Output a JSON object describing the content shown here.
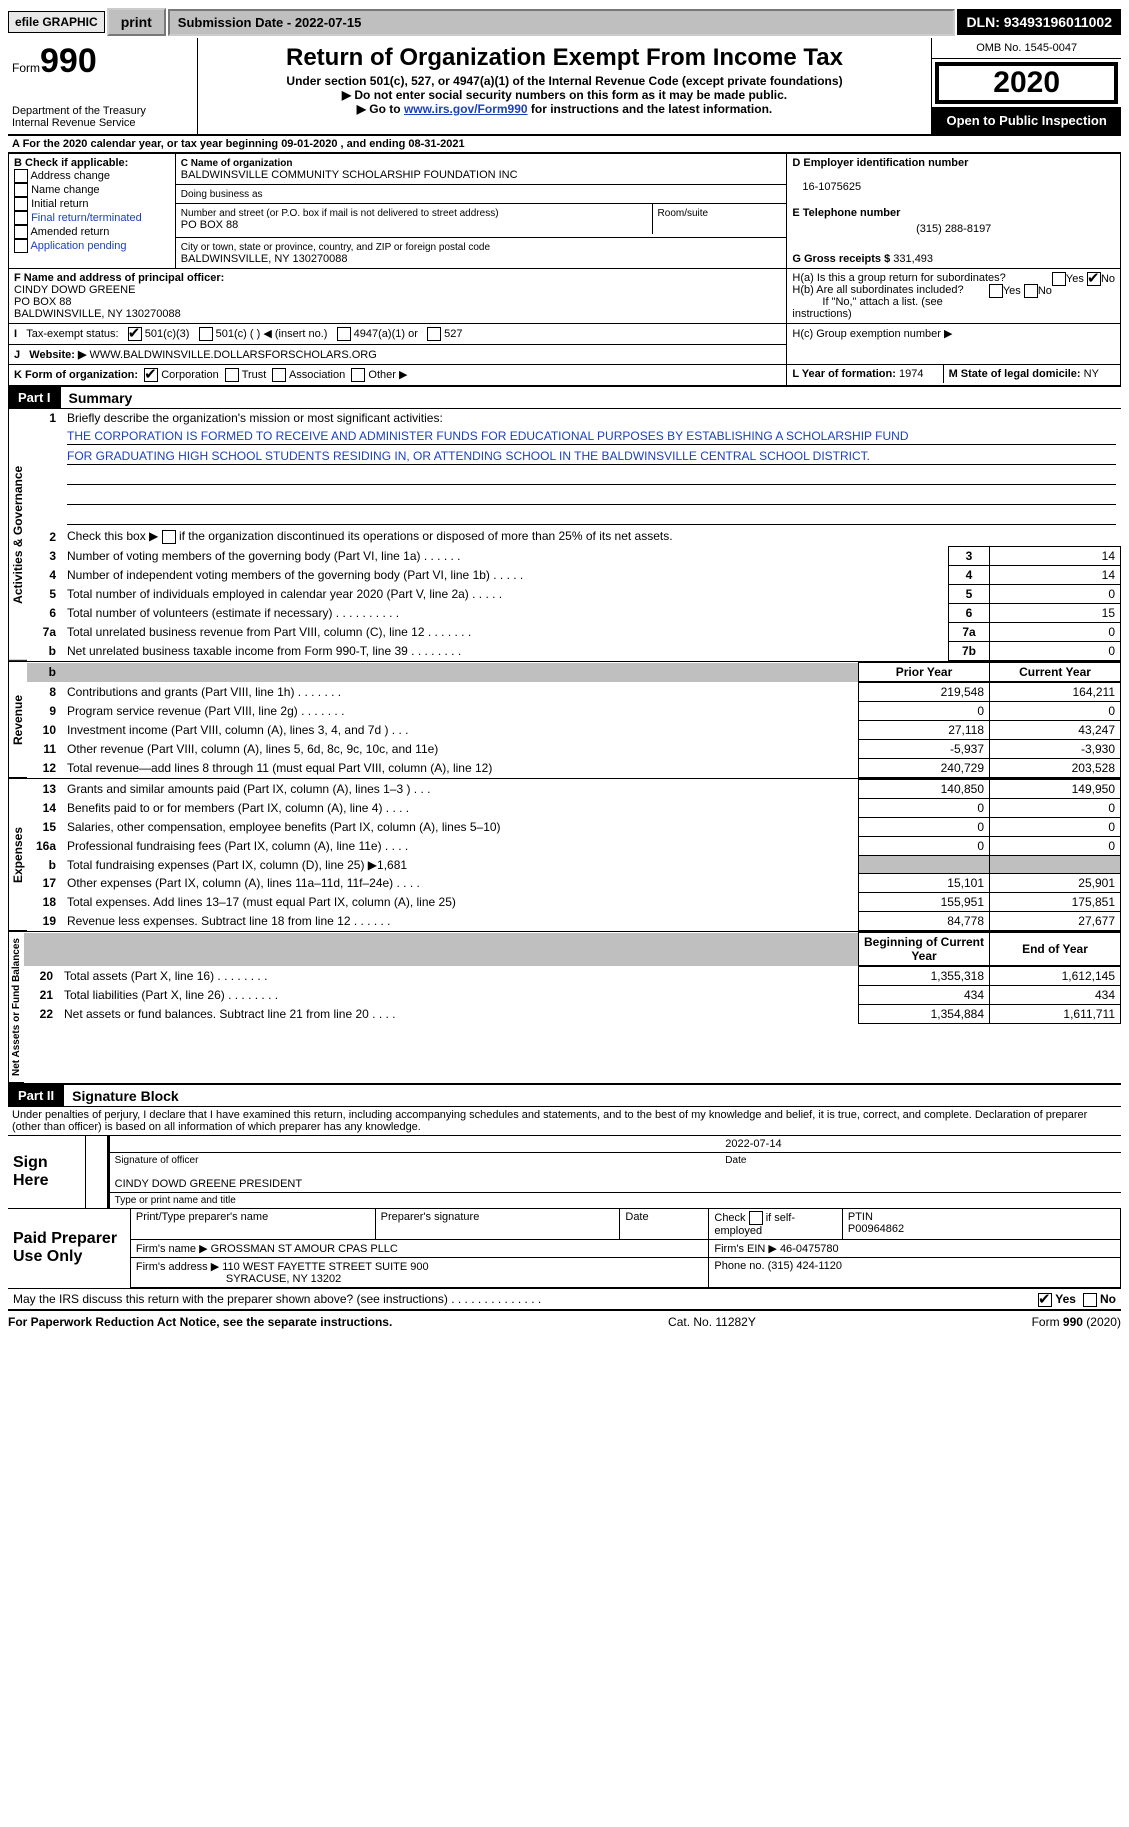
{
  "topbar": {
    "efile_label": "efile GRAPHIC",
    "print_label": "print",
    "submission": "Submission Date - 2022-07-15",
    "dln": "DLN: 93493196011002"
  },
  "header": {
    "form_word": "Form",
    "form_no": "990",
    "dept": "Department of the Treasury\nInternal Revenue Service",
    "title": "Return of Organization Exempt From Income Tax",
    "subtitle": "Under section 501(c), 527, or 4947(a)(1) of the Internal Revenue Code (except private foundations)",
    "note1": "▶ Do not enter social security numbers on this form as it may be made public.",
    "note2_pre": "▶ Go to ",
    "note2_link": "www.irs.gov/Form990",
    "note2_post": " for instructions and the latest information.",
    "omb": "OMB No. 1545-0047",
    "year": "2020",
    "open_pub": "Open to Public Inspection"
  },
  "lineA": "A For the 2020 calendar year, or tax year beginning 09-01-2020    , and ending 08-31-2021",
  "boxB": {
    "label": "B Check if applicable:",
    "opts": [
      "Address change",
      "Name change",
      "Initial return",
      "Final return/terminated",
      "Amended return",
      "Application pending"
    ]
  },
  "boxC": {
    "label": "C Name of organization",
    "name": "BALDWINSVILLE COMMUNITY SCHOLARSHIP FOUNDATION INC",
    "dba_label": "Doing business as",
    "addr_label": "Number and street (or P.O. box if mail is not delivered to street address)",
    "room_label": "Room/suite",
    "addr": "PO BOX 88",
    "city_label": "City or town, state or province, country, and ZIP or foreign postal code",
    "city": "BALDWINSVILLE, NY  130270088"
  },
  "boxD": {
    "label": "D Employer identification number",
    "val": "16-1075625"
  },
  "boxE": {
    "label": "E Telephone number",
    "val": "(315) 288-8197"
  },
  "boxG": {
    "label": "G Gross receipts $",
    "val": "331,493"
  },
  "boxF": {
    "label": "F Name and address of principal officer:",
    "name": "CINDY DOWD GREENE",
    "addr1": "PO BOX 88",
    "addr2": "BALDWINSVILLE, NY  130270088"
  },
  "boxH": {
    "a_label": "H(a)  Is this a group return for subordinates?",
    "b_label": "H(b)  Are all subordinates included?",
    "b_note": "If \"No,\" attach a list. (see instructions)",
    "c_label": "H(c)  Group exemption number ▶",
    "yes": "Yes",
    "no": "No"
  },
  "boxI": {
    "label": "Tax-exempt status:",
    "o1": "501(c)(3)",
    "o2": "501(c) (  ) ◀ (insert no.)",
    "o3": "4947(a)(1) or",
    "o4": "527"
  },
  "boxJ": {
    "label": "Website: ▶",
    "val": "WWW.BALDWINSVILLE.DOLLARSFORSCHOLARS.ORG"
  },
  "boxK": {
    "label": "K Form of organization:",
    "o1": "Corporation",
    "o2": "Trust",
    "o3": "Association",
    "o4": "Other ▶"
  },
  "boxL": {
    "label": "L Year of formation:",
    "val": "1974"
  },
  "boxM": {
    "label": "M State of legal domicile:",
    "val": "NY"
  },
  "part1": {
    "hdr": "Part I",
    "title": "Summary"
  },
  "q1": {
    "label": "Briefly describe the organization's mission or most significant activities:",
    "text1": "THE CORPORATION IS FORMED TO RECEIVE AND ADMINISTER FUNDS FOR EDUCATIONAL PURPOSES BY ESTABLISHING A SCHOLARSHIP FUND",
    "text2": "FOR GRADUATING HIGH SCHOOL STUDENTS RESIDING IN, OR ATTENDING SCHOOL IN THE BALDWINSVILLE CENTRAL SCHOOL DISTRICT."
  },
  "q2": "Check this box ▶        if the organization discontinued its operations or disposed of more than 25% of its net assets.",
  "vlabels": {
    "gov": "Activities & Governance",
    "rev": "Revenue",
    "exp": "Expenses",
    "net": "Net Assets or Fund Balances"
  },
  "lines_gov": [
    {
      "n": "3",
      "t": "Number of voting members of the governing body (Part VI, line 1a)   .    .    .    .    .    .",
      "b": "3",
      "v": "14"
    },
    {
      "n": "4",
      "t": "Number of independent voting members of the governing body (Part VI, line 1b)   .    .    .    .    .",
      "b": "4",
      "v": "14"
    },
    {
      "n": "5",
      "t": "Total number of individuals employed in calendar year 2020 (Part V, line 2a)   .    .    .    .    .",
      "b": "5",
      "v": "0"
    },
    {
      "n": "6",
      "t": "Total number of volunteers (estimate if necessary)    .    .    .    .    .    .    .    .    .    .",
      "b": "6",
      "v": "15"
    },
    {
      "n": "7a",
      "t": "Total unrelated business revenue from Part VIII, column (C), line 12   .   .   .   .   .   .   .",
      "b": "7a",
      "v": "0"
    },
    {
      "n": "b",
      "t": "Net unrelated business taxable income from Form 990-T, line 39   .    .    .    .    .    .    .    .",
      "b": "7b",
      "v": "0"
    }
  ],
  "colhdr": {
    "prior": "Prior Year",
    "curr": "Current Year",
    "begin": "Beginning of Current Year",
    "end": "End of Year"
  },
  "lines_rev": [
    {
      "n": "8",
      "t": "Contributions and grants (Part VIII, line 1h)    .    .    .    .    .    .    .",
      "p": "219,548",
      "c": "164,211"
    },
    {
      "n": "9",
      "t": "Program service revenue (Part VIII, line 2g)    .    .    .    .    .    .    .",
      "p": "0",
      "c": "0"
    },
    {
      "n": "10",
      "t": "Investment income (Part VIII, column (A), lines 3, 4, and 7d )    .    .    .",
      "p": "27,118",
      "c": "43,247"
    },
    {
      "n": "11",
      "t": "Other revenue (Part VIII, column (A), lines 5, 6d, 8c, 9c, 10c, and 11e)",
      "p": "-5,937",
      "c": "-3,930"
    },
    {
      "n": "12",
      "t": "Total revenue—add lines 8 through 11 (must equal Part VIII, column (A), line 12)",
      "p": "240,729",
      "c": "203,528"
    }
  ],
  "lines_exp": [
    {
      "n": "13",
      "t": "Grants and similar amounts paid (Part IX, column (A), lines 1–3 )   .   .   .",
      "p": "140,850",
      "c": "149,950"
    },
    {
      "n": "14",
      "t": "Benefits paid to or for members (Part IX, column (A), line 4)   .   .   .   .",
      "p": "0",
      "c": "0"
    },
    {
      "n": "15",
      "t": "Salaries, other compensation, employee benefits (Part IX, column (A), lines 5–10)",
      "p": "0",
      "c": "0"
    },
    {
      "n": "16a",
      "t": "Professional fundraising fees (Part IX, column (A), line 11e)   .   .   .   .",
      "p": "0",
      "c": "0"
    },
    {
      "n": "b",
      "t": "Total fundraising expenses (Part IX, column (D), line 25) ▶1,681",
      "p": "",
      "c": "",
      "shade": true
    },
    {
      "n": "17",
      "t": "Other expenses (Part IX, column (A), lines 11a–11d, 11f–24e)   .   .   .   .",
      "p": "15,101",
      "c": "25,901"
    },
    {
      "n": "18",
      "t": "Total expenses. Add lines 13–17 (must equal Part IX, column (A), line 25)",
      "p": "155,951",
      "c": "175,851"
    },
    {
      "n": "19",
      "t": "Revenue less expenses. Subtract line 18 from line 12   .   .   .   .   .   .",
      "p": "84,778",
      "c": "27,677"
    }
  ],
  "lines_net": [
    {
      "n": "20",
      "t": "Total assets (Part X, line 16)   .    .    .    .    .    .    .    .",
      "p": "1,355,318",
      "c": "1,612,145"
    },
    {
      "n": "21",
      "t": "Total liabilities (Part X, line 26)   .    .    .    .    .    .    .    .",
      "p": "434",
      "c": "434"
    },
    {
      "n": "22",
      "t": "Net assets or fund balances. Subtract line 21 from line 20   .   .   .   .",
      "p": "1,354,884",
      "c": "1,611,711"
    }
  ],
  "part2": {
    "hdr": "Part II",
    "title": "Signature Block"
  },
  "perjury": "Under penalties of perjury, I declare that I have examined this return, including accompanying schedules and statements, and to the best of my knowledge and belief, it is true, correct, and complete. Declaration of preparer (other than officer) is based on all information of which preparer has any knowledge.",
  "sign": {
    "here": "Sign Here",
    "date": "2022-07-14",
    "sig_of_officer": "Signature of officer",
    "date_label": "Date",
    "officer": "CINDY DOWD GREENE  PRESIDENT",
    "type_label": "Type or print name and title"
  },
  "paid": {
    "here": "Paid Preparer Use Only",
    "h1": "Print/Type preparer's name",
    "h2": "Preparer's signature",
    "h3": "Date",
    "h4pre": "Check",
    "h4post": "if self-employed",
    "h5": "PTIN",
    "ptin": "P00964862",
    "firm_name_label": "Firm's name    ▶",
    "firm_name": "GROSSMAN ST AMOUR CPAS PLLC",
    "firm_ein_label": "Firm's EIN ▶",
    "firm_ein": "46-0475780",
    "firm_addr_label": "Firm's address ▶",
    "firm_addr1": "110 WEST FAYETTE STREET SUITE 900",
    "firm_addr2": "SYRACUSE, NY  13202",
    "phone_label": "Phone no.",
    "phone": "(315) 424-1120"
  },
  "discuss": "May the IRS discuss this return with the preparer shown above? (see instructions)   .    .    .    .    .    .    .    .    .    .    .    .    .    .",
  "footer": {
    "left": "For Paperwork Reduction Act Notice, see the separate instructions.",
    "mid": "Cat. No. 11282Y",
    "right": "Form 990 (2020)"
  }
}
